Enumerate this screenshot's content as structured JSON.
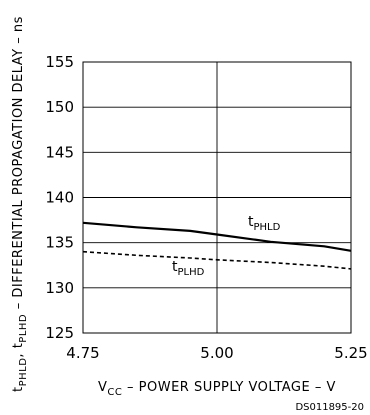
{
  "chart_data": {
    "type": "line",
    "title": "",
    "xlabel": {
      "pre": "V",
      "sub": "CC",
      "post": " – POWER SUPPLY VOLTAGE – V"
    },
    "ylabel": {
      "t1": "t",
      "s1": "PHLD",
      "mid": ", t",
      "s2": "PLHD",
      "post": " – DIFFERENTIAL PROPAGATION DELAY – ns"
    },
    "xlim": [
      4.75,
      5.25
    ],
    "ylim": [
      125,
      155
    ],
    "x_ticks": [
      "4.75",
      "5.00",
      "5.25"
    ],
    "y_ticks": [
      "125",
      "130",
      "135",
      "140",
      "145",
      "150",
      "155"
    ],
    "grid": true,
    "series": [
      {
        "name": "tPHLD",
        "label_main": "t",
        "label_sub": "PHLD",
        "style": "solid",
        "color": "#000000",
        "x": [
          4.75,
          4.85,
          4.95,
          5.0,
          5.1,
          5.2,
          5.25
        ],
        "y": [
          137.2,
          136.7,
          136.3,
          135.9,
          135.1,
          134.6,
          134.1
        ]
      },
      {
        "name": "tPLHD",
        "label_main": "t",
        "label_sub": "PLHD",
        "style": "dashed",
        "color": "#000000",
        "x": [
          4.75,
          4.85,
          4.95,
          5.0,
          5.1,
          5.2,
          5.25
        ],
        "y": [
          134.0,
          133.6,
          133.3,
          133.1,
          132.8,
          132.4,
          132.1
        ]
      }
    ]
  },
  "footer_code": "DS011895-20"
}
